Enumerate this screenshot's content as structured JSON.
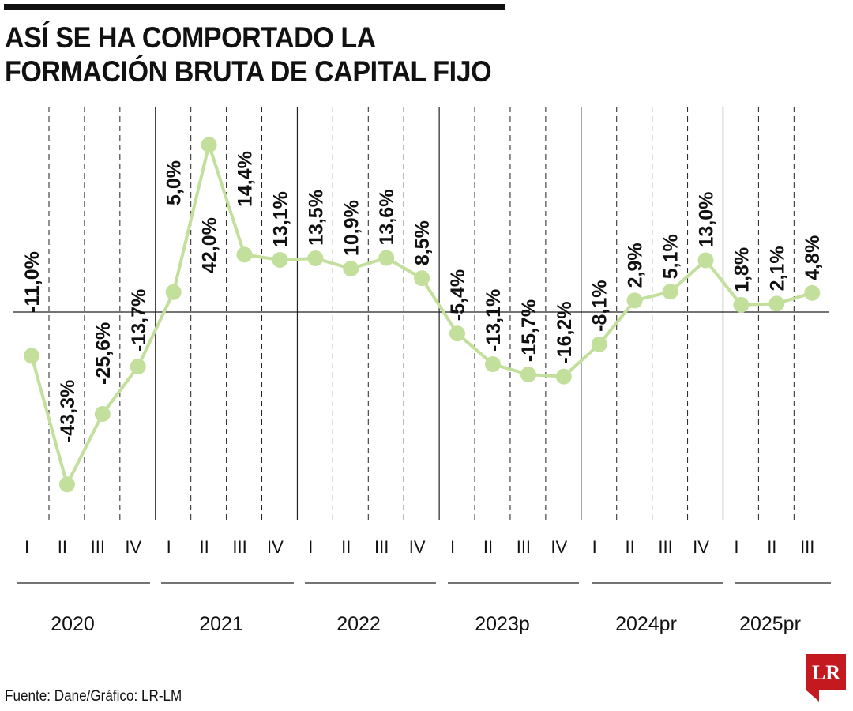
{
  "title_lines": [
    "ASÍ SE HA COMPORTADO LA",
    "FORMACIÓN BRUTA DE CAPITAL FIJO"
  ],
  "source": "Fuente: Dane/Gráfico: LR-LM",
  "logo_text": "LR",
  "colors": {
    "line": "#c3df9c",
    "marker": "#c3df9c",
    "text": "#111111",
    "logo": "#c41a1f"
  },
  "chart_data": {
    "type": "line",
    "title": "ASÍ SE HA COMPORTADO LA FORMACIÓN BRUTA DE CAPITAL FIJO",
    "quarters": [
      "I",
      "II",
      "III",
      "IV",
      "I",
      "II",
      "III",
      "IV",
      "I",
      "II",
      "III",
      "IV",
      "I",
      "II",
      "III",
      "IV",
      "I",
      "II",
      "III",
      "IV",
      "I",
      "II",
      "III"
    ],
    "years": [
      "2020",
      "2021",
      "2022",
      "2023p",
      "2024pr",
      "2025pr"
    ],
    "quarters_per_year": [
      4,
      4,
      4,
      4,
      4,
      3
    ],
    "values": [
      -11.0,
      -43.3,
      -25.6,
      -13.7,
      5.0,
      42.0,
      14.4,
      13.1,
      13.5,
      10.9,
      13.6,
      8.5,
      -5.4,
      -13.1,
      -15.7,
      -16.2,
      -8.1,
      2.9,
      5.1,
      13.0,
      1.8,
      2.1,
      4.8
    ],
    "labels": [
      "-11,0%",
      "-43,3%",
      "-25,6%",
      "-13,7%",
      "5,0%",
      "42,0%",
      "14,4%",
      "13,1%",
      "13,5%",
      "10,9%",
      "13,6%",
      "8,5%",
      "-5,4%",
      "-13,1%",
      "-15,7%",
      "-16,2%",
      "-8,1%",
      "2,9%",
      "5,1%",
      "13,0%",
      "1,8%",
      "2,1%",
      "4,8%"
    ],
    "ylim": [
      -46,
      46
    ],
    "zero_line": true,
    "grid": "dashed vertical at each quarter, solid at each year start"
  }
}
